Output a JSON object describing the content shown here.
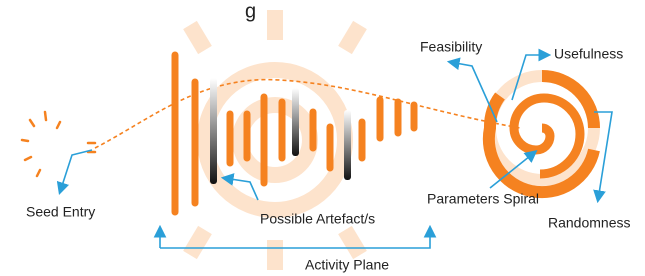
{
  "header": {
    "fragment": "g"
  },
  "labels": {
    "seed_entry": "Seed Entry",
    "artefacts": "Possible Artefact/s",
    "activity_plane": "Activity Plane",
    "feasibility": "Feasibility",
    "usefulness": "Usefulness",
    "parameters_spiral": "Parameters Spiral",
    "randomness": "Randomness"
  }
}
